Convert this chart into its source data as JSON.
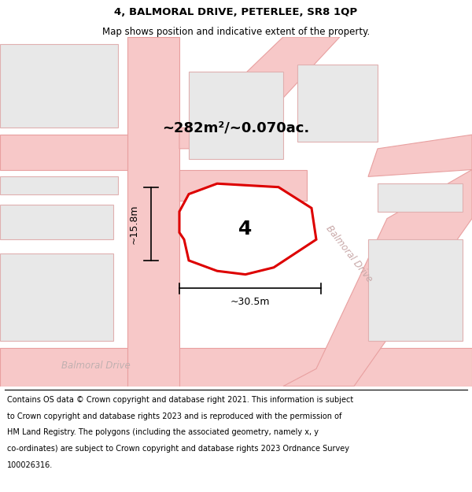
{
  "title": "4, BALMORAL DRIVE, PETERLEE, SR8 1QP",
  "subtitle": "Map shows position and indicative extent of the property.",
  "area_label": "~282m²/~0.070ac.",
  "plot_label": "4",
  "width_label": "~30.5m",
  "height_label": "~15.8m",
  "road_label_diag": "Balmoral Drive",
  "road_label_bottom": "Balmoral Drive",
  "highlight_color": "#dd0000",
  "highlight_fill": "#ffffff",
  "road_fill": "#f7c8c8",
  "road_edge": "#e8a0a0",
  "building_fill": "#e8e8e8",
  "building_edge": "#e0b0b0",
  "map_bg": "#eeebe8",
  "footer_lines": [
    "Contains OS data © Crown copyright and database right 2021. This information is subject",
    "to Crown copyright and database rights 2023 and is reproduced with the permission of",
    "HM Land Registry. The polygons (including the associated geometry, namely x, y",
    "co-ordinates) are subject to Crown copyright and database rights 2023 Ordnance Survey",
    "100026316."
  ],
  "title_fontsize": 9.5,
  "subtitle_fontsize": 8.5,
  "area_fontsize": 13,
  "plot_num_fontsize": 18,
  "meas_fontsize": 9,
  "road_fontsize": 8.5,
  "footer_fontsize": 7.0
}
